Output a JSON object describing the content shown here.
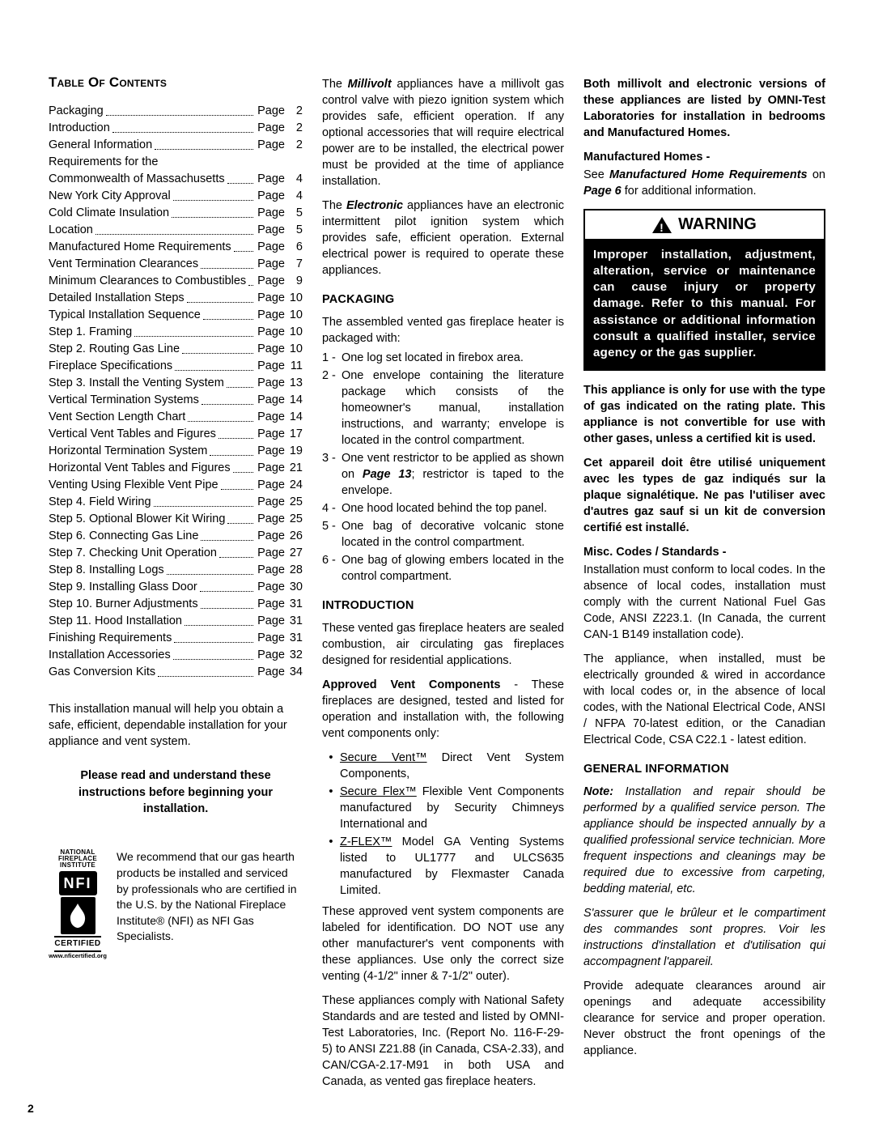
{
  "toc": {
    "title": "Table Of Contents",
    "items": [
      {
        "label": "Packaging",
        "page": "2"
      },
      {
        "label": "Introduction",
        "page": "2"
      },
      {
        "label": "General Information",
        "page": "2"
      },
      {
        "label": "Requirements for the",
        "page": "",
        "nodots": true
      },
      {
        "label": "  Commonwealth of Massachusetts",
        "page": "4",
        "short": true
      },
      {
        "label": "New York City Approval",
        "page": "4"
      },
      {
        "label": "Cold Climate Insulation",
        "page": "5"
      },
      {
        "label": "Location",
        "page": "5"
      },
      {
        "label": "Manufactured Home Requirements",
        "page": "6"
      },
      {
        "label": "Vent Termination Clearances",
        "page": "7"
      },
      {
        "label": "Minimum Clearances to Combustibles",
        "page": "9",
        "short": true
      },
      {
        "label": "Detailed Installation Steps",
        "page": "10"
      },
      {
        "label": "Typical Installation Sequence",
        "page": "10"
      },
      {
        "label": "Step 1. Framing",
        "page": "10"
      },
      {
        "label": "Step 2. Routing Gas Line",
        "page": "10"
      },
      {
        "label": "Fireplace Specifications",
        "page": "11"
      },
      {
        "label": "Step 3. Install the Venting System",
        "page": "13"
      },
      {
        "label": "Vertical Termination Systems",
        "page": "14"
      },
      {
        "label": "Vent Section Length Chart",
        "page": "14"
      },
      {
        "label": "Vertical Vent Tables and Figures",
        "page": "17"
      },
      {
        "label": "Horizontal Termination System",
        "page": "19"
      },
      {
        "label": "Horizontal Vent Tables and Figures",
        "page": "21"
      },
      {
        "label": "Venting Using Flexible Vent Pipe",
        "page": "24"
      },
      {
        "label": "Step 4. Field Wiring",
        "page": "25"
      },
      {
        "label": "Step 5. Optional Blower Kit Wiring",
        "page": "25"
      },
      {
        "label": "Step 6. Connecting Gas Line",
        "page": "26"
      },
      {
        "label": "Step 7. Checking Unit Operation",
        "page": "27"
      },
      {
        "label": "Step 8. Installing Logs",
        "page": "28"
      },
      {
        "label": "Step 9. Installing Glass Door",
        "page": "30"
      },
      {
        "label": "Step 10. Burner Adjustments",
        "page": "31"
      },
      {
        "label": "Step 11. Hood Installation",
        "page": "31"
      },
      {
        "label": "Finishing Requirements",
        "page": "31"
      },
      {
        "label": "Installation Accessories",
        "page": "32"
      },
      {
        "label": "Gas Conversion Kits",
        "page": "34"
      }
    ],
    "note": "This installation manual will help you obtain a safe, efficient, dependable installation for your appliance and vent system.",
    "instruction": "Please read and understand these instructions before beginning your installation."
  },
  "nfi": {
    "top": "NATIONAL",
    "mid": "FIREPLACE",
    "bot": "INSTITUTE",
    "abbr": "NFI",
    "cert": "CERTIFIED",
    "url": "www.nficertified.org",
    "text": "We recommend that our gas hearth products be installed and serviced by professionals who are certified in the U.S. by the National Fireplace Institute® (NFI) as NFI Gas Specialists."
  },
  "col2": {
    "millivolt_pre": "The ",
    "millivolt_bold": "Millivolt",
    "millivolt_post": " appliances have a millivolt gas control valve with piezo ignition system which provides safe, efficient operation. If any optional accessories that will require electrical power are to be installed, the electrical power must be provided at the time of appliance installation.",
    "electronic_pre": "The ",
    "electronic_bold": "Electronic",
    "electronic_post": " appliances have an electronic intermittent pilot ignition system which provides safe, efficient operation. External electrical power is required to operate these appliances.",
    "packaging_head": "PACKAGING",
    "packaging_lead": "The assembled vented gas fireplace heater is packaged with:",
    "pack_items": [
      {
        "n": "1 -",
        "t": "One log set located in firebox area."
      },
      {
        "n": "2 -",
        "t": "One envelope containing the literature package which consists of the homeowner's manual, installation instructions, and warranty; envelope is located in the control compartment."
      },
      {
        "n": "3 -",
        "t": "One vent restrictor to be applied as shown on "
      },
      {
        "n": "4 -",
        "t": "One hood located behind the top panel."
      },
      {
        "n": "5 -",
        "t": "One bag of decorative volcanic stone located in the control compartment."
      },
      {
        "n": "6 -",
        "t": "One bag of glowing embers located in the control compartment."
      }
    ],
    "page13_bold": "Page 13",
    "page13_after": "; restrictor is taped to the envelope.",
    "intro_head": "INTRODUCTION",
    "intro_p": "These vented gas fireplace heaters are sealed combustion, air circulating gas fireplaces designed for residential applications.",
    "approved_bold": "Approved Vent Components",
    "approved_after": " - These fireplaces are designed, tested and listed for operation and installation with, the following vent components only:",
    "bullets": [
      "Secure Vent™ Direct Vent System Components,",
      "Secure Flex™ Flexible Vent Components manufactured by Security Chimneys International and",
      "Z-FLEX™ Model GA Venting Systems listed to UL1777 and ULCS635 manufactured by Flexmaster Canada Limited."
    ],
    "bullets_under": [
      "Secure Vent™",
      "Secure Flex™",
      "Z-FLEX™"
    ],
    "approved_note": "These approved vent system components are labeled for identification. DO NOT use any other manufacturer's vent components with these appliances.  Use only the correct size venting (4-1/2\" inner & 7-1/2\" outer).",
    "omni": "These appliances comply with National Safety Standards and are tested and listed by OMNI-Test Laboratories, Inc. (Report No. 116-F-29-5) to ANSI Z21.88 (in Canada, CSA-2.33), and CAN/CGA-2.17-M91 in both USA and Canada, as vented gas fireplace heaters."
  },
  "col3": {
    "listed": "Both millivolt and electronic versions of these appliances are listed by OMNI-Test Laboratories for installation in bedrooms and Manufactured Homes.",
    "mh_head": "Manufactured Homes -",
    "mh_see": "See ",
    "mh_bold": "Manufactured Home Requirements",
    "mh_on": " on ",
    "mh_pg": "Page 6",
    "mh_after": " for additional information.",
    "warn_label": "WARNING",
    "warn_body": "Improper installation, adjustment, alteration, service or maintenance can cause injury or property damage.  Refer to this manual.  For assistance or additional information consult a qualified installer, service agency or the gas supplier.",
    "gas_note": "This appliance is only for use with the type of gas indicated on the rating plate. This appliance is not convertible for use with other gases, unless a certified kit is used.",
    "gas_fr": "Cet appareil doit être utilisé uniquement avec les types de gaz indiqués sur la plaque signalétique.  Ne pas l'utiliser avec d'autres gaz sauf si un kit de conversion certifié est installé.",
    "codes_head": "Misc. Codes / Standards -",
    "codes_p": "Installation must conform to local codes. In the absence of local codes, installation must comply with the current National Fuel Gas Code, ANSI Z223.1. (In Canada, the current CAN-1 B149 installation code).",
    "elec_p": "The appliance, when installed, must be electrically grounded & wired in accordance with local codes or, in the absence of local codes, with the National Electrical Code, ANSI / NFPA 70-latest edition, or the Canadian Electrical Code, CSA C22.1 - latest edition.",
    "gen_head": "GENERAL INFORMATION",
    "note_bold": "Note:",
    "note_p": "  Installation and repair should be performed by a qualified service person. The appliance should be inspected annually by a qualified professional service technician. More frequent inspections and cleanings may be required due to excessive from carpeting, bedding material, etc.",
    "fr2": "S'assurer que le brûleur et le compartiment des commandes sont propres.  Voir les instructions d'installation et d'utilisation qui accompagnent l'appareil.",
    "clear_p": "Provide adequate clearances around air openings and adequate accessibility clearance for service and proper operation. Never obstruct the front openings of the appliance."
  },
  "page_num": "2"
}
